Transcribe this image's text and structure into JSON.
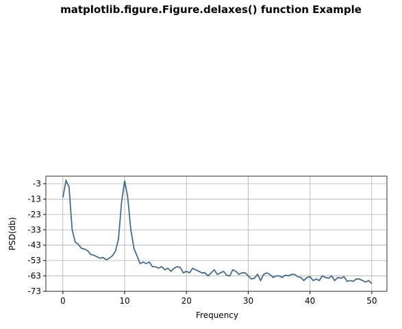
{
  "chart_data": {
    "type": "line",
    "title": "matplotlib.figure.Figure.delaxes() function Example",
    "xlabel": "Frequency",
    "ylabel": "PSD(db)",
    "x": [
      0,
      0.5,
      1,
      1.5,
      2,
      2.5,
      3,
      3.5,
      4,
      4.5,
      5,
      5.5,
      6,
      6.5,
      7,
      7.5,
      8,
      8.5,
      9,
      9.5,
      10,
      10.5,
      11,
      11.5,
      12,
      12.5,
      13,
      13.5,
      14,
      14.5,
      15,
      15.5,
      16,
      16.5,
      17,
      17.5,
      18,
      18.5,
      19,
      19.5,
      20,
      20.5,
      21,
      21.5,
      22,
      22.5,
      23,
      23.5,
      24,
      24.5,
      25,
      25.5,
      26,
      26.5,
      27,
      27.5,
      28,
      28.5,
      29,
      29.5,
      30,
      30.5,
      31,
      31.5,
      32,
      32.5,
      33,
      33.5,
      34,
      34.5,
      35,
      35.5,
      36,
      36.5,
      37,
      37.5,
      38,
      38.5,
      39,
      39.5,
      40,
      40.5,
      41,
      41.5,
      42,
      42.5,
      43,
      43.5,
      44,
      44.5,
      45,
      45.5,
      46,
      46.5,
      47,
      47.5,
      48,
      48.5,
      49,
      49.5,
      50
    ],
    "series": [
      {
        "name": "PSD",
        "color": "#456b8a",
        "values": [
          -12,
          -1,
          -5,
          -33,
          -41,
          -42.5,
          -45,
          -45.5,
          -46.5,
          -49,
          -49.5,
          -50.5,
          -51.5,
          -51,
          -52.5,
          -51.5,
          -50,
          -47,
          -39,
          -15,
          -1,
          -12,
          -33,
          -45,
          -50,
          -55,
          -54,
          -55,
          -54,
          -57,
          -57,
          -58,
          -57,
          -59,
          -58,
          -60,
          -58,
          -57,
          -57.5,
          -61,
          -60,
          -61,
          -58,
          -59,
          -60,
          -61,
          -61,
          -63,
          -61,
          -59,
          -62,
          -61,
          -60,
          -62.5,
          -63,
          -59,
          -60,
          -62,
          -61,
          -61,
          -63,
          -65,
          -64.5,
          -62,
          -66,
          -62,
          -61,
          -62,
          -64,
          -63,
          -63,
          -64,
          -62.5,
          -63,
          -62,
          -62,
          -63.5,
          -64,
          -66,
          -64,
          -63.5,
          -66,
          -65,
          -66,
          -63,
          -64,
          -64.5,
          -63,
          -66,
          -64,
          -64.5,
          -63.5,
          -66.5,
          -66,
          -66.5,
          -65,
          -65,
          -66,
          -67,
          -66,
          -68
        ]
      }
    ],
    "xlim": [
      -2.75,
      52.45
    ],
    "ylim": [
      -73,
      1.9
    ],
    "xticks": [
      0,
      10,
      20,
      30,
      40,
      50
    ],
    "yticks": [
      -3,
      -13,
      -23,
      -33,
      -43,
      -53,
      -63,
      -73
    ],
    "grid": true
  }
}
